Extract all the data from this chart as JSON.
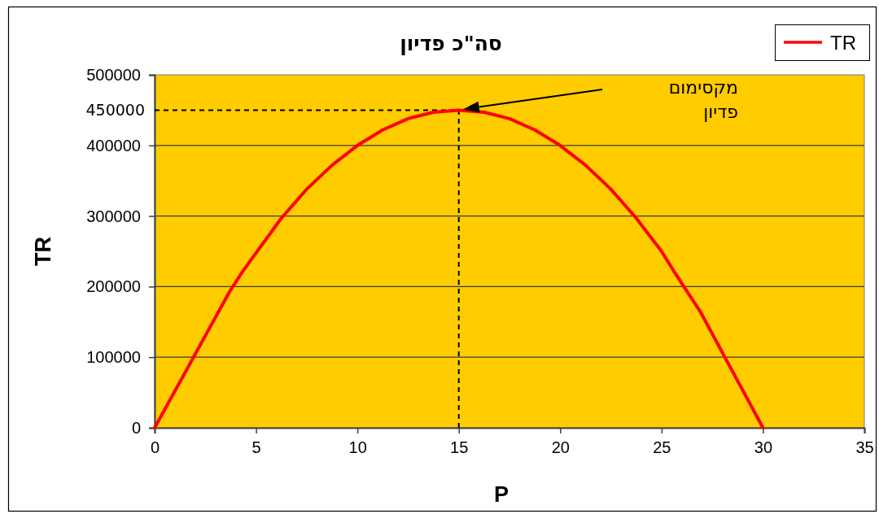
{
  "chart_data": {
    "type": "line",
    "title": "סה\"כ פדיון",
    "xlabel": "P",
    "ylabel": "TR",
    "x": [
      0,
      3.7,
      4.35,
      6.25,
      7.5,
      8.75,
      10,
      11.25,
      12.5,
      13.75,
      15,
      16.25,
      17.5,
      18.75,
      20,
      21.25,
      22.5,
      23.75,
      25,
      25.6,
      26.9,
      30
    ],
    "series": [
      {
        "name": "TR",
        "color": "#ff0000",
        "values": [
          0,
          193000,
          222000,
          297000,
          338000,
          372000,
          400000,
          422000,
          438000,
          447000,
          450000,
          447000,
          438000,
          422000,
          400000,
          372000,
          338000,
          297000,
          250000,
          222000,
          165000,
          0
        ]
      }
    ],
    "xlim": [
      0,
      35
    ],
    "xticks": [
      0,
      5,
      10,
      15,
      20,
      25,
      30,
      35
    ],
    "ylim": [
      0,
      500000
    ],
    "yticks": [
      0,
      100000,
      200000,
      300000,
      400000,
      500000
    ],
    "grid": "y",
    "legend": "top right",
    "ref_lines": [
      {
        "axis": "y",
        "value": 450000,
        "label": "450000",
        "color": "#000000",
        "line_style": "dashed"
      },
      {
        "axis": "x",
        "value": 15,
        "color": "#000000",
        "line_style": "dashed"
      }
    ],
    "annotations": [
      "מקסימום\nפדיון"
    ]
  }
}
